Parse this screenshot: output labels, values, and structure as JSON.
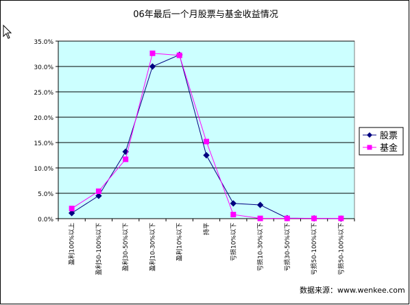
{
  "chart_data": {
    "type": "line",
    "title": "06年最后一个月股票与基金收益情况",
    "categories": [
      "盈利100%以上",
      "盈利50-100%以下",
      "盈利30-50%以下",
      "盈利10-30%以下",
      "盈利10%以下",
      "持平",
      "亏损10%以下",
      "亏损10-30%以下",
      "亏损30-50%以下",
      "亏损50-100%以下",
      "亏损50-100%以下"
    ],
    "y_ticks": [
      "0.0%",
      "5.0%",
      "10.0%",
      "15.0%",
      "20.0%",
      "25.0%",
      "30.0%",
      "35.0%"
    ],
    "ylim": [
      0,
      35
    ],
    "grid": true,
    "legend_position": "right",
    "series": [
      {
        "name": "股票",
        "color": "#000080",
        "marker": "diamond",
        "values": [
          1.1,
          4.5,
          13.2,
          30.0,
          32.3,
          12.5,
          3.0,
          2.7,
          0.1,
          0.05,
          0.0
        ]
      },
      {
        "name": "基金",
        "color": "#ff00ff",
        "marker": "square",
        "values": [
          2.0,
          5.4,
          11.7,
          32.6,
          32.2,
          15.2,
          0.8,
          0.05,
          0.05,
          0.05,
          0.05
        ]
      }
    ],
    "source_note": "数据来源：www.wenkee.com"
  },
  "colors": {
    "plot_bg": "#ccffff",
    "chart_border": "#000000",
    "grid": "#000000",
    "axis_text": "#000000"
  }
}
